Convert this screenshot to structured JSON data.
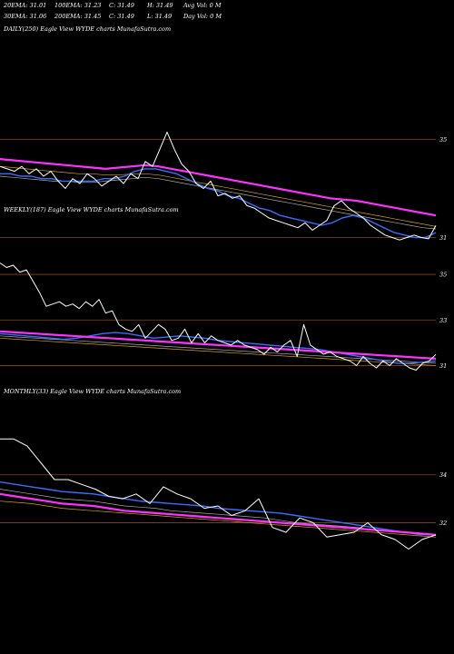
{
  "header": {
    "row1": [
      "20EMA: 31.01",
      "100EMA: 31.23",
      "C: 31.49",
      "H: 31.49",
      "Avg Vol: 0  M"
    ],
    "row2": [
      "30EMA: 31.06",
      "200EMA: 31.45",
      "C: 31.49",
      "L: 31.49",
      "Day Vol: 0  M"
    ]
  },
  "colors": {
    "background": "#000000",
    "price": "#ffffff",
    "ema_short": "#3b6dff",
    "ema_long": "#ff33ff",
    "ema_mid": "#d4a017",
    "ema_gray": "#aaaaaa",
    "gridline": "#8b4513"
  },
  "chart_data": [
    {
      "type": "line",
      "title": "DAILY(250) Eagle   View WYDE charts MunafaSutra.com",
      "y_ticks": [
        "35",
        "31"
      ],
      "y_tick_values": [
        35,
        31
      ],
      "ylim": [
        30.5,
        35.5
      ],
      "series": [
        {
          "role": "price",
          "values": [
            33.9,
            33.8,
            33.7,
            33.9,
            33.6,
            33.8,
            33.5,
            33.7,
            33.3,
            33.0,
            33.4,
            33.2,
            33.6,
            33.4,
            33.1,
            33.3,
            33.5,
            33.2,
            33.6,
            33.4,
            34.1,
            33.9,
            34.6,
            35.3,
            34.6,
            34.0,
            33.7,
            33.2,
            33.0,
            33.3,
            32.7,
            32.8,
            32.6,
            32.7,
            32.3,
            32.2,
            32.0,
            31.8,
            31.7,
            31.6,
            31.5,
            31.4,
            31.6,
            31.3,
            31.5,
            31.7,
            32.3,
            32.5,
            32.2,
            32.0,
            31.8,
            31.5,
            31.3,
            31.1,
            31.0,
            30.9,
            31.0,
            31.1,
            31.0,
            30.95,
            31.49
          ]
        },
        {
          "role": "ema_short",
          "values": [
            33.6,
            33.6,
            33.5,
            33.5,
            33.4,
            33.4,
            33.3,
            33.3,
            33.3,
            33.3,
            33.4,
            33.4,
            33.5,
            33.7,
            33.8,
            33.8,
            33.7,
            33.6,
            33.4,
            33.2,
            33.0,
            32.9,
            32.7,
            32.6,
            32.4,
            32.2,
            32.1,
            31.9,
            31.8,
            31.7,
            31.6,
            31.5,
            31.6,
            31.8,
            31.9,
            31.8,
            31.6,
            31.4,
            31.2,
            31.1,
            31.0,
            31.0,
            31.2
          ]
        },
        {
          "role": "ema_long",
          "values": [
            34.2,
            34.15,
            34.1,
            34.05,
            34.0,
            33.95,
            33.9,
            33.85,
            33.8,
            33.85,
            33.9,
            33.95,
            33.9,
            33.8,
            33.7,
            33.6,
            33.5,
            33.4,
            33.3,
            33.2,
            33.1,
            33.0,
            32.9,
            32.8,
            32.7,
            32.6,
            32.55,
            32.5,
            32.4,
            32.3,
            32.2,
            32.1,
            32.0,
            31.9
          ]
        },
        {
          "role": "ema_mid",
          "values": [
            33.9,
            33.85,
            33.8,
            33.75,
            33.7,
            33.65,
            33.6,
            33.6,
            33.55,
            33.55,
            33.6,
            33.6,
            33.55,
            33.45,
            33.35,
            33.25,
            33.15,
            33.05,
            32.95,
            32.85,
            32.75,
            32.65,
            32.55,
            32.45,
            32.35,
            32.25,
            32.15,
            32.05,
            31.95,
            31.85,
            31.75,
            31.65,
            31.55,
            31.45
          ]
        },
        {
          "role": "ema_gray",
          "values": [
            33.5,
            33.45,
            33.4,
            33.35,
            33.3,
            33.3,
            33.25,
            33.25,
            33.3,
            33.35,
            33.4,
            33.45,
            33.4,
            33.3,
            33.2,
            33.1,
            33.0,
            32.9,
            32.8,
            32.7,
            32.6,
            32.5,
            32.4,
            32.3,
            32.2,
            32.1,
            32.0,
            31.9,
            31.8,
            31.7,
            31.6,
            31.5,
            31.4,
            31.35
          ]
        }
      ]
    },
    {
      "type": "line",
      "title": "WEEKLY(187) Eagle   View WYDE charts MunafaSutra.com",
      "y_ticks": [
        "35",
        "33",
        "31"
      ],
      "y_tick_values": [
        35,
        33,
        31
      ],
      "ylim": [
        30.5,
        35.8
      ],
      "series": [
        {
          "role": "price",
          "values": [
            35.5,
            35.3,
            35.4,
            35.1,
            35.2,
            34.7,
            34.2,
            33.6,
            33.7,
            33.8,
            33.6,
            33.7,
            33.5,
            33.8,
            33.6,
            33.9,
            33.3,
            33.4,
            32.8,
            32.6,
            32.5,
            32.8,
            32.2,
            32.5,
            32.8,
            32.6,
            32.1,
            32.2,
            32.6,
            32.0,
            32.4,
            32.0,
            32.3,
            32.1,
            32.0,
            31.9,
            32.1,
            31.9,
            31.8,
            31.7,
            31.5,
            31.8,
            31.6,
            31.9,
            32.1,
            31.4,
            32.8,
            31.9,
            31.7,
            31.5,
            31.6,
            31.4,
            31.3,
            31.2,
            31.0,
            31.4,
            31.1,
            30.9,
            31.2,
            31.0,
            31.3,
            31.1,
            30.9,
            30.8,
            31.1,
            31.2,
            31.49
          ]
        },
        {
          "role": "ema_short",
          "values": [
            32.4,
            32.35,
            32.3,
            32.25,
            32.2,
            32.15,
            32.2,
            32.3,
            32.4,
            32.45,
            32.4,
            32.3,
            32.2,
            32.25,
            32.3,
            32.25,
            32.2,
            32.1,
            32.05,
            32.0,
            31.95,
            31.9,
            31.85,
            31.8,
            31.75,
            31.7,
            31.6,
            31.5,
            31.4,
            31.3,
            31.2,
            31.1,
            31.1,
            31.15,
            31.2
          ]
        },
        {
          "role": "ema_long",
          "values": [
            32.5,
            32.45,
            32.4,
            32.35,
            32.3,
            32.25,
            32.2,
            32.15,
            32.1,
            32.05,
            32.0,
            31.95,
            31.9,
            31.85,
            31.8,
            31.75,
            31.7,
            31.65,
            31.6,
            31.55,
            31.5,
            31.45,
            31.4,
            31.35,
            31.3
          ]
        },
        {
          "role": "ema_mid",
          "values": [
            32.2,
            32.15,
            32.1,
            32.05,
            32.0,
            31.95,
            31.9,
            31.85,
            31.8,
            31.75,
            31.7,
            31.65,
            31.6,
            31.55,
            31.5,
            31.45,
            31.4,
            31.35,
            31.3,
            31.25,
            31.2,
            31.15,
            31.1,
            31.05,
            31.0
          ]
        },
        {
          "role": "ema_gray",
          "values": [
            32.3,
            32.25,
            32.2,
            32.15,
            32.1,
            32.05,
            32.0,
            31.95,
            31.9,
            31.85,
            31.8,
            31.75,
            31.7,
            31.65,
            31.6,
            31.55,
            31.5,
            31.45,
            31.4,
            31.35,
            31.3,
            31.25,
            31.2,
            31.15,
            31.1
          ]
        }
      ]
    },
    {
      "type": "line",
      "title": "MONTHLY(33) Eagle   View WYDE charts MunafaSutra.com",
      "y_ticks": [
        "34",
        "32"
      ],
      "y_tick_values": [
        34,
        32
      ],
      "ylim": [
        30.5,
        36.0
      ],
      "series": [
        {
          "role": "price",
          "values": [
            35.5,
            35.5,
            35.2,
            34.5,
            33.8,
            33.8,
            33.6,
            33.4,
            33.1,
            33.0,
            33.2,
            32.8,
            33.5,
            33.2,
            33.0,
            32.6,
            32.7,
            32.3,
            32.5,
            33.0,
            31.8,
            31.6,
            32.2,
            32.0,
            31.4,
            31.5,
            31.6,
            32.0,
            31.5,
            31.3,
            30.9,
            31.3,
            31.49
          ]
        },
        {
          "role": "ema_short",
          "values": [
            33.7,
            33.6,
            33.5,
            33.4,
            33.3,
            33.25,
            33.2,
            33.1,
            33.0,
            32.9,
            32.85,
            32.8,
            32.75,
            32.7,
            32.6,
            32.55,
            32.5,
            32.45,
            32.4,
            32.3,
            32.2,
            32.1,
            32.0,
            31.9,
            31.8,
            31.7,
            31.6,
            31.5,
            31.49
          ]
        },
        {
          "role": "ema_long",
          "values": [
            33.2,
            33.1,
            33.0,
            32.9,
            32.8,
            32.75,
            32.7,
            32.6,
            32.5,
            32.45,
            32.4,
            32.35,
            32.3,
            32.25,
            32.2,
            32.15,
            32.1,
            32.05,
            32.0,
            31.95,
            31.9,
            31.85,
            31.8,
            31.75,
            31.7,
            31.65,
            31.6,
            31.55,
            31.49
          ]
        },
        {
          "role": "ema_mid",
          "values": [
            32.9,
            32.85,
            32.8,
            32.7,
            32.6,
            32.55,
            32.5,
            32.45,
            32.4,
            32.35,
            32.3,
            32.25,
            32.2,
            32.15,
            32.1,
            32.05,
            32.0,
            31.95,
            31.9,
            31.85,
            31.8,
            31.75,
            31.7,
            31.65,
            31.6,
            31.55,
            31.5,
            31.45,
            31.4
          ]
        },
        {
          "role": "ema_gray",
          "values": [
            33.4,
            33.3,
            33.2,
            33.1,
            33.0,
            32.95,
            32.9,
            32.8,
            32.7,
            32.65,
            32.6,
            32.5,
            32.45,
            32.4,
            32.35,
            32.3,
            32.25,
            32.2,
            32.1,
            32.0,
            31.95,
            31.9,
            31.85,
            31.8,
            31.7,
            31.65,
            31.6,
            31.55,
            31.5
          ]
        }
      ]
    }
  ]
}
